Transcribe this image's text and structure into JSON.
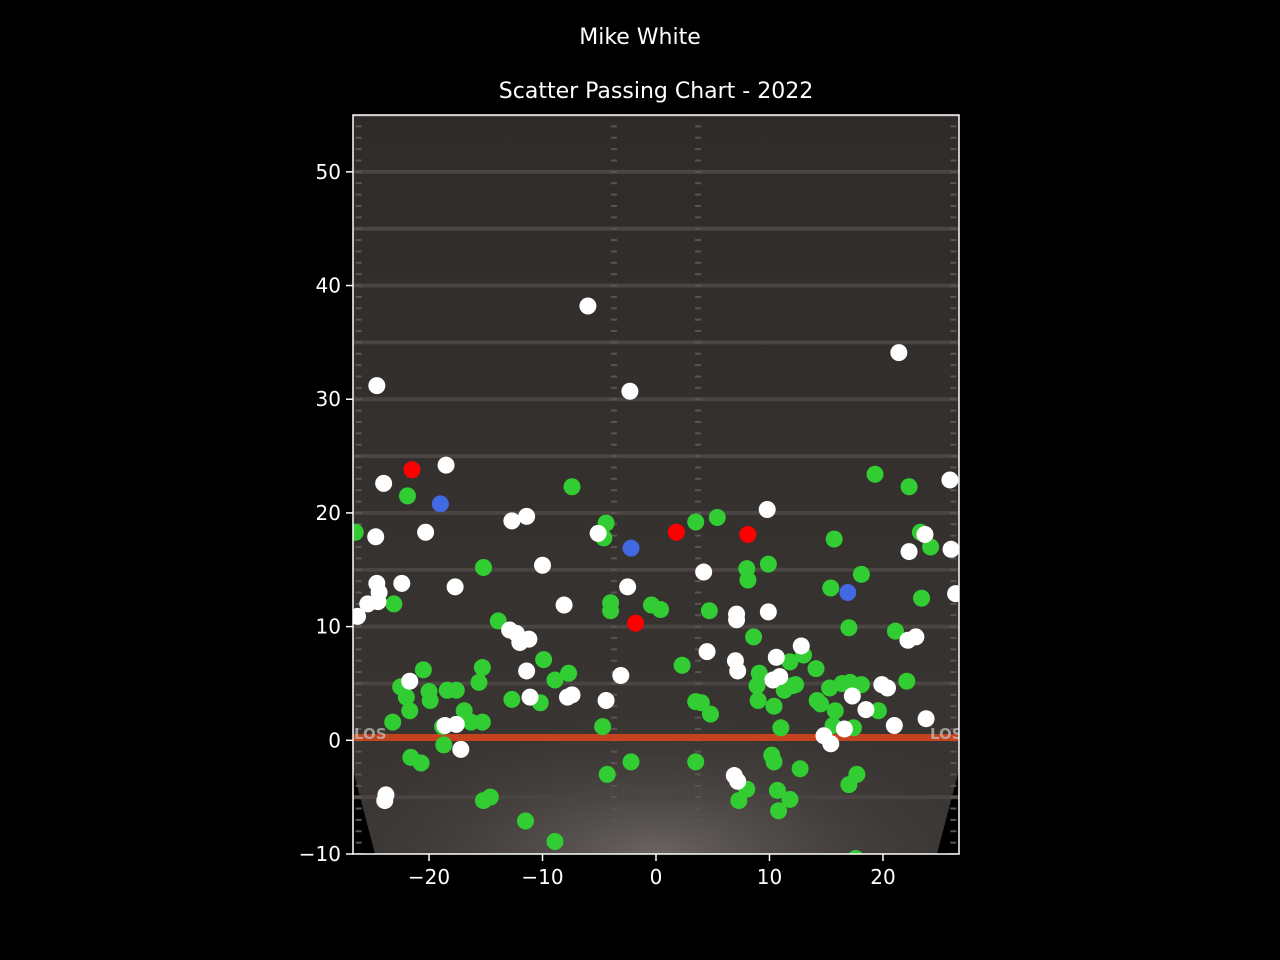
{
  "chart_data": {
    "type": "scatter",
    "suptitle": "Mike White",
    "title": "Scatter Passing Chart - 2022",
    "xlabel": "",
    "ylabel": "",
    "xlim": [
      -26.7,
      26.7
    ],
    "ylim": [
      -10,
      55
    ],
    "x_ticks": [
      -20,
      -10,
      0,
      10,
      20
    ],
    "y_ticks": [
      -10,
      0,
      10,
      20,
      30,
      40,
      50
    ],
    "grid": false,
    "background": "football field image",
    "field_text": "LOS",
    "colors": {
      "complete": "#32cd32",
      "incomplete": "#ffffff",
      "interception": "#ff0000",
      "touchdown": "#4169e1",
      "los_line": "#e0461a",
      "field": "#2e2a28"
    },
    "series": [
      {
        "color": "#32cd32",
        "points": [
          [
            -26.5,
            18.3
          ],
          [
            -21.9,
            21.5
          ],
          [
            -23.1,
            12.0
          ],
          [
            -7.4,
            22.3
          ],
          [
            -4.4,
            19.1
          ],
          [
            -4.6,
            17.8
          ],
          [
            -4.0,
            12.1
          ],
          [
            -4.0,
            11.4
          ],
          [
            -15.2,
            15.2
          ],
          [
            -13.9,
            10.5
          ],
          [
            -9.9,
            7.1
          ],
          [
            -7.7,
            5.9
          ],
          [
            -8.9,
            5.3
          ],
          [
            -15.3,
            6.4
          ],
          [
            -15.6,
            5.1
          ],
          [
            -20.5,
            6.2
          ],
          [
            -22.5,
            4.7
          ],
          [
            -22.0,
            3.8
          ],
          [
            -20.0,
            4.3
          ],
          [
            -19.9,
            3.5
          ],
          [
            -18.4,
            4.4
          ],
          [
            -17.6,
            4.4
          ],
          [
            -16.9,
            2.6
          ],
          [
            -16.3,
            1.6
          ],
          [
            -15.3,
            1.6
          ],
          [
            -21.7,
            2.6
          ],
          [
            -23.2,
            1.6
          ],
          [
            -12.7,
            3.6
          ],
          [
            -10.2,
            3.3
          ],
          [
            -18.8,
            1.2
          ],
          [
            -18.7,
            -0.4
          ],
          [
            -21.6,
            -1.5
          ],
          [
            -20.7,
            -2.0
          ],
          [
            -15.2,
            -5.3
          ],
          [
            -14.6,
            -5.0
          ],
          [
            -11.5,
            -7.1
          ],
          [
            -8.9,
            -8.9
          ],
          [
            -4.7,
            1.2
          ],
          [
            -4.3,
            -3.0
          ],
          [
            -2.2,
            -1.9
          ],
          [
            -0.4,
            11.9
          ],
          [
            0.4,
            11.5
          ],
          [
            2.3,
            6.6
          ],
          [
            3.5,
            19.2
          ],
          [
            5.4,
            19.6
          ],
          [
            4.7,
            11.4
          ],
          [
            3.5,
            3.4
          ],
          [
            4.0,
            3.3
          ],
          [
            4.8,
            2.3
          ],
          [
            3.5,
            -1.9
          ],
          [
            8.0,
            15.1
          ],
          [
            8.1,
            14.1
          ],
          [
            9.9,
            15.5
          ],
          [
            8.6,
            9.1
          ],
          [
            9.1,
            5.9
          ],
          [
            8.9,
            4.8
          ],
          [
            9.0,
            3.5
          ],
          [
            10.4,
            3.0
          ],
          [
            11.3,
            4.4
          ],
          [
            11.8,
            6.9
          ],
          [
            12.0,
            4.8
          ],
          [
            12.3,
            4.9
          ],
          [
            13.0,
            7.5
          ],
          [
            14.1,
            6.3
          ],
          [
            14.2,
            3.5
          ],
          [
            14.5,
            3.2
          ],
          [
            15.3,
            4.6
          ],
          [
            15.8,
            2.6
          ],
          [
            16.4,
            5.0
          ],
          [
            17.1,
            5.1
          ],
          [
            18.1,
            4.9
          ],
          [
            17.0,
            9.9
          ],
          [
            18.1,
            14.6
          ],
          [
            19.3,
            23.4
          ],
          [
            22.3,
            22.3
          ],
          [
            23.3,
            18.3
          ],
          [
            24.2,
            17.0
          ],
          [
            23.4,
            12.5
          ],
          [
            15.7,
            17.7
          ],
          [
            15.4,
            13.4
          ],
          [
            21.1,
            9.6
          ],
          [
            22.1,
            5.2
          ],
          [
            19.6,
            2.6
          ],
          [
            15.6,
            1.3
          ],
          [
            17.4,
            1.1
          ],
          [
            11.0,
            1.1
          ],
          [
            10.2,
            -1.3
          ],
          [
            10.4,
            -1.9
          ],
          [
            10.7,
            -4.4
          ],
          [
            10.8,
            -6.2
          ],
          [
            11.8,
            -5.2
          ],
          [
            12.7,
            -2.5
          ],
          [
            8.0,
            -4.3
          ],
          [
            7.3,
            -5.3
          ],
          [
            17.7,
            -3.0
          ],
          [
            17.0,
            -3.9
          ],
          [
            17.6,
            -10.4
          ]
        ]
      },
      {
        "color": "#ffffff",
        "points": [
          [
            -6.0,
            38.2
          ],
          [
            -2.3,
            30.7
          ],
          [
            -24.6,
            31.2
          ],
          [
            -18.5,
            24.2
          ],
          [
            -24.0,
            22.6
          ],
          [
            -24.7,
            17.9
          ],
          [
            -20.3,
            18.3
          ],
          [
            -12.7,
            19.3
          ],
          [
            -11.4,
            19.7
          ],
          [
            -5.1,
            18.2
          ],
          [
            -10.0,
            15.4
          ],
          [
            -17.7,
            13.5
          ],
          [
            -22.4,
            13.8
          ],
          [
            -24.6,
            13.8
          ],
          [
            -24.4,
            13.0
          ],
          [
            -25.4,
            12.0
          ],
          [
            -24.5,
            12.2
          ],
          [
            -26.3,
            10.9
          ],
          [
            -8.1,
            11.9
          ],
          [
            -2.5,
            13.5
          ],
          [
            4.2,
            14.8
          ],
          [
            9.8,
            20.3
          ],
          [
            -12.9,
            9.7
          ],
          [
            -12.3,
            9.4
          ],
          [
            -12.0,
            8.6
          ],
          [
            -11.2,
            8.9
          ],
          [
            -11.4,
            6.1
          ],
          [
            -7.8,
            3.8
          ],
          [
            -7.4,
            4.0
          ],
          [
            -11.1,
            3.8
          ],
          [
            -3.1,
            5.7
          ],
          [
            -4.4,
            3.5
          ],
          [
            -21.7,
            5.2
          ],
          [
            -18.6,
            1.3
          ],
          [
            -17.6,
            1.4
          ],
          [
            -17.2,
            -0.8
          ],
          [
            -23.8,
            -4.8
          ],
          [
            -23.9,
            -5.3
          ],
          [
            4.5,
            7.8
          ],
          [
            7.1,
            11.1
          ],
          [
            7.1,
            10.6
          ],
          [
            9.9,
            11.3
          ],
          [
            7.0,
            7.0
          ],
          [
            7.2,
            6.1
          ],
          [
            10.6,
            7.3
          ],
          [
            10.3,
            5.3
          ],
          [
            10.9,
            5.6
          ],
          [
            12.8,
            8.3
          ],
          [
            21.4,
            34.1
          ],
          [
            25.9,
            22.9
          ],
          [
            26.0,
            16.8
          ],
          [
            26.4,
            12.9
          ],
          [
            22.3,
            16.6
          ],
          [
            23.7,
            18.1
          ],
          [
            22.2,
            8.8
          ],
          [
            22.9,
            9.1
          ],
          [
            19.9,
            4.9
          ],
          [
            20.4,
            4.6
          ],
          [
            21.0,
            1.3
          ],
          [
            23.8,
            1.9
          ],
          [
            17.3,
            3.9
          ],
          [
            18.5,
            2.7
          ],
          [
            16.6,
            1.0
          ],
          [
            14.8,
            0.4
          ],
          [
            15.4,
            -0.3
          ],
          [
            6.9,
            -3.1
          ],
          [
            7.2,
            -3.6
          ]
        ]
      },
      {
        "color": "#ff0000",
        "points": [
          [
            -21.5,
            23.8
          ],
          [
            1.8,
            18.3
          ],
          [
            8.1,
            18.1
          ],
          [
            -1.8,
            10.3
          ]
        ]
      },
      {
        "color": "#4169e1",
        "points": [
          [
            -19.0,
            20.8
          ],
          [
            -2.2,
            16.9
          ],
          [
            16.9,
            13.0
          ]
        ]
      }
    ]
  }
}
